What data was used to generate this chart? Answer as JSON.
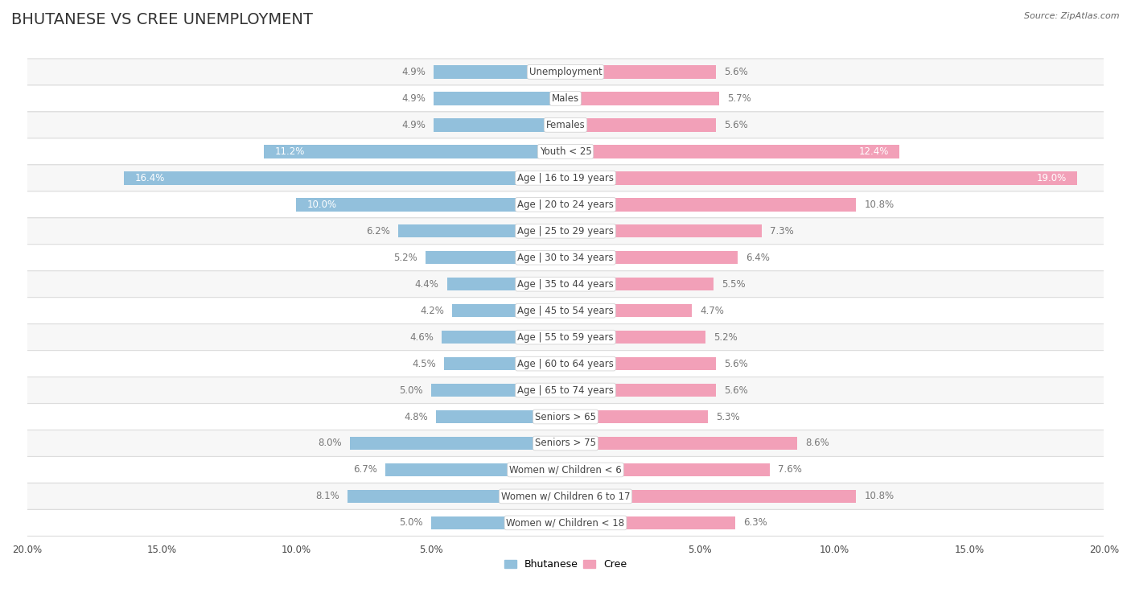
{
  "title": "BHUTANESE VS CREE UNEMPLOYMENT",
  "source": "Source: ZipAtlas.com",
  "categories": [
    "Unemployment",
    "Males",
    "Females",
    "Youth < 25",
    "Age | 16 to 19 years",
    "Age | 20 to 24 years",
    "Age | 25 to 29 years",
    "Age | 30 to 34 years",
    "Age | 35 to 44 years",
    "Age | 45 to 54 years",
    "Age | 55 to 59 years",
    "Age | 60 to 64 years",
    "Age | 65 to 74 years",
    "Seniors > 65",
    "Seniors > 75",
    "Women w/ Children < 6",
    "Women w/ Children 6 to 17",
    "Women w/ Children < 18"
  ],
  "bhutanese": [
    4.9,
    4.9,
    4.9,
    11.2,
    16.4,
    10.0,
    6.2,
    5.2,
    4.4,
    4.2,
    4.6,
    4.5,
    5.0,
    4.8,
    8.0,
    6.7,
    8.1,
    5.0
  ],
  "cree": [
    5.6,
    5.7,
    5.6,
    12.4,
    19.0,
    10.8,
    7.3,
    6.4,
    5.5,
    4.7,
    5.2,
    5.6,
    5.6,
    5.3,
    8.6,
    7.6,
    10.8,
    6.3
  ],
  "bhutanese_color": "#92C0DC",
  "cree_color": "#F2A0B8",
  "label_color_dark": "#777777",
  "bg_color": "#ffffff",
  "row_bg_even": "#f7f7f7",
  "row_bg_odd": "#ffffff",
  "row_border": "#dddddd",
  "axis_max": 20.0,
  "bar_height": 0.5,
  "title_fontsize": 14,
  "label_fontsize": 8.5,
  "category_fontsize": 8.5,
  "xtick_fontsize": 8.5
}
